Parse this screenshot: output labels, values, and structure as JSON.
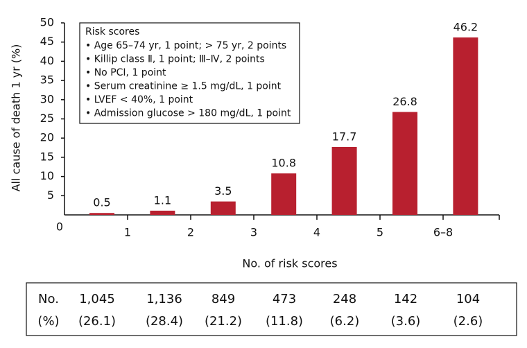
{
  "chart_data": {
    "type": "bar",
    "y_label": "All cause of death 1 yr (%)",
    "x_label": "No. of risk scores",
    "categories": [
      "0",
      "1",
      "2",
      "3",
      "4",
      "5",
      "6–8"
    ],
    "values": [
      0.5,
      1.1,
      3.5,
      10.8,
      17.7,
      26.8,
      46.2
    ],
    "color": "#b8202f",
    "ylim": [
      0,
      50
    ],
    "yticks": [
      0,
      5,
      10,
      15,
      20,
      25,
      30,
      35,
      40,
      45,
      50
    ],
    "annotation": {
      "title": "Risk scores",
      "items": [
        "• Age 65–74 yr, 1 point; > 75 yr, 2 points",
        "• Killip class Ⅱ, 1 point; Ⅲ–Ⅳ, 2 points",
        "• No PCI, 1 point",
        "• Serum creatinine ≥ 1.5 mg/dL, 1 point",
        "• LVEF < 40%, 1 point",
        "• Admission glucose > 180 mg/dL, 1 point"
      ]
    }
  },
  "table": {
    "rows": [
      [
        "No.",
        "1,045",
        "1,136",
        "849",
        "473",
        "248",
        "142",
        "104"
      ],
      [
        "(%)",
        "(26.1)",
        "(28.4)",
        "(21.2)",
        "(11.8)",
        "(6.2)",
        "(3.6)",
        "(2.6)"
      ]
    ]
  }
}
